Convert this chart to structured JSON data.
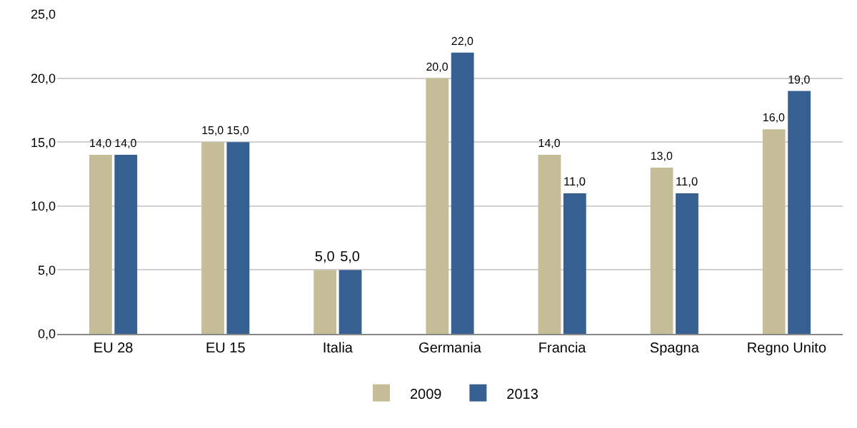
{
  "chart_data": {
    "type": "bar",
    "categories": [
      "EU 28",
      "EU 15",
      "Italia",
      "Germania",
      "Francia",
      "Spagna",
      "Regno Unito"
    ],
    "series": [
      {
        "name": "2009",
        "color": "#c4bd97",
        "values": [
          14,
          15,
          5,
          20,
          14,
          13,
          16
        ],
        "value_labels": [
          "14,0",
          "15,0",
          "5,0",
          "20,0",
          "14,0",
          "13,0",
          "16,0"
        ]
      },
      {
        "name": "2013",
        "color": "#376092",
        "values": [
          14,
          15,
          5,
          22,
          11,
          11,
          19
        ],
        "value_labels": [
          "14,0",
          "15,0",
          "5,0",
          "22,0",
          "11,0",
          "11,0",
          "19,0"
        ]
      }
    ],
    "ylim": [
      0,
      25
    ],
    "yticks": [
      {
        "value": 0,
        "label": "0,0"
      },
      {
        "value": 5,
        "label": "5,0"
      },
      {
        "value": 10,
        "label": "10,0"
      },
      {
        "value": 15,
        "label": "15,0"
      },
      {
        "value": 20,
        "label": "20,0"
      },
      {
        "value": 25,
        "label": "25,0"
      }
    ],
    "grid": "y",
    "legend": "bottom"
  }
}
